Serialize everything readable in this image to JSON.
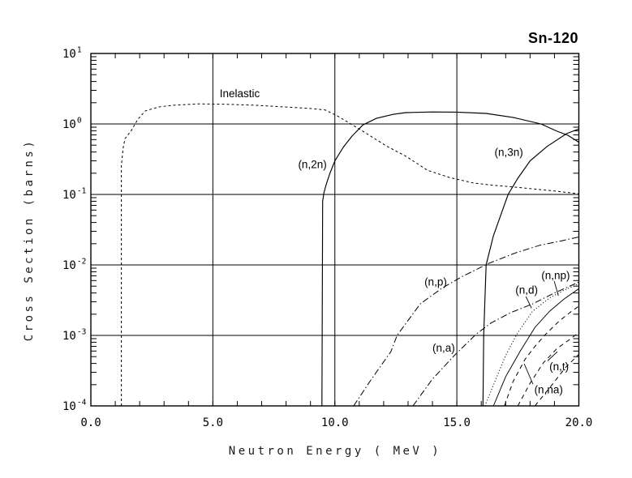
{
  "title": "Sn-120",
  "colors": {
    "stroke": "#000000",
    "background": "#ffffff"
  },
  "chart_data": {
    "type": "line",
    "title": "Sn-120",
    "xlabel": "Neutron Energy ( MeV )",
    "ylabel": "Cross Section (barns)",
    "x_axis": {
      "min": 0,
      "max": 20,
      "major_ticks": [
        0,
        5,
        10,
        15,
        20
      ],
      "tick_labels": [
        "0.0",
        "5.0",
        "10.0",
        "15.0",
        "20.0"
      ],
      "minor_tick_step": 1,
      "gridlines": [
        5,
        10,
        15
      ]
    },
    "y_axis": {
      "scale": "log",
      "min": 0.0001,
      "max": 10,
      "decade_exponents": [
        1,
        0,
        -1,
        -2,
        -3,
        -4
      ],
      "gridline_exponents": [
        0,
        -1,
        -2,
        -3
      ]
    },
    "series": [
      {
        "name": "Inelastic",
        "style": "dashed",
        "points": [
          [
            1.25,
            0.0001
          ],
          [
            1.25,
            0.26
          ],
          [
            1.33,
            0.47
          ],
          [
            1.4,
            0.62
          ],
          [
            1.66,
            0.81
          ],
          [
            1.93,
            1.17
          ],
          [
            2.23,
            1.53
          ],
          [
            2.77,
            1.74
          ],
          [
            3.33,
            1.84
          ],
          [
            4.4,
            1.93
          ],
          [
            5.55,
            1.9
          ],
          [
            6.65,
            1.85
          ],
          [
            8.0,
            1.74
          ],
          [
            9.0,
            1.66
          ],
          [
            9.6,
            1.58
          ],
          [
            10.1,
            1.3
          ],
          [
            10.6,
            1.03
          ],
          [
            11.2,
            0.77
          ],
          [
            12.1,
            0.49
          ],
          [
            12.9,
            0.35
          ],
          [
            13.8,
            0.22
          ],
          [
            14.7,
            0.174
          ],
          [
            15.7,
            0.145
          ],
          [
            16.5,
            0.135
          ],
          [
            17.3,
            0.128
          ],
          [
            18.2,
            0.119
          ],
          [
            19.0,
            0.112
          ],
          [
            20,
            0.102
          ]
        ]
      },
      {
        "name": "(n,2n)",
        "style": "solid",
        "points": [
          [
            9.47,
            0.0001
          ],
          [
            9.5,
            0.08
          ],
          [
            9.55,
            0.105
          ],
          [
            9.65,
            0.14
          ],
          [
            9.8,
            0.2
          ],
          [
            10.0,
            0.3
          ],
          [
            10.35,
            0.47
          ],
          [
            10.7,
            0.67
          ],
          [
            11.15,
            0.97
          ],
          [
            11.7,
            1.2
          ],
          [
            12.4,
            1.37
          ],
          [
            12.9,
            1.45
          ],
          [
            14.0,
            1.48
          ],
          [
            15.0,
            1.47
          ],
          [
            16.2,
            1.41
          ],
          [
            17.3,
            1.24
          ],
          [
            18.45,
            1.0
          ],
          [
            19.1,
            0.79
          ],
          [
            19.55,
            0.69
          ],
          [
            20,
            0.55
          ]
        ]
      },
      {
        "name": "(n,3n)",
        "style": "solid",
        "points": [
          [
            16.07,
            0.0001
          ],
          [
            16.1,
            0.001
          ],
          [
            16.2,
            0.01
          ],
          [
            16.5,
            0.026
          ],
          [
            17.1,
            0.1
          ],
          [
            17.5,
            0.17
          ],
          [
            18.0,
            0.3
          ],
          [
            18.7,
            0.48
          ],
          [
            19.5,
            0.73
          ],
          [
            20,
            0.85
          ]
        ]
      },
      {
        "name": "(n,p)",
        "style": "dashdot",
        "points": [
          [
            10.77,
            0.0001
          ],
          [
            11.5,
            0.00024
          ],
          [
            12.3,
            0.00059
          ],
          [
            12.55,
            0.001
          ],
          [
            13.5,
            0.0028
          ],
          [
            14.4,
            0.0047
          ],
          [
            15.2,
            0.0068
          ],
          [
            16.3,
            0.0105
          ],
          [
            17.4,
            0.0148
          ],
          [
            18.4,
            0.019
          ],
          [
            19.3,
            0.022
          ],
          [
            20,
            0.025
          ]
        ]
      },
      {
        "name": "(n,a)",
        "style": "dashdot",
        "points": [
          [
            13.2,
            0.0001
          ],
          [
            14.0,
            0.00024
          ],
          [
            14.9,
            0.00052
          ],
          [
            15.8,
            0.00105
          ],
          [
            16.4,
            0.0015
          ],
          [
            17.2,
            0.0021
          ],
          [
            18.1,
            0.0028
          ],
          [
            19.0,
            0.004
          ],
          [
            20,
            0.0057
          ]
        ]
      },
      {
        "name": "(n,np)",
        "style": "dotted",
        "points": [
          [
            16.15,
            0.0001
          ],
          [
            16.6,
            0.00024
          ],
          [
            17.0,
            0.00052
          ],
          [
            17.45,
            0.00103
          ],
          [
            18.1,
            0.0022
          ],
          [
            18.8,
            0.0034
          ],
          [
            19.4,
            0.0044
          ],
          [
            20,
            0.0054
          ]
        ]
      },
      {
        "name": "(n,d)",
        "style": "solid-thin",
        "points": [
          [
            16.5,
            0.0001
          ],
          [
            17.0,
            0.00026
          ],
          [
            17.6,
            0.0006
          ],
          [
            18.2,
            0.0013
          ],
          [
            18.8,
            0.0022
          ],
          [
            19.4,
            0.0033
          ],
          [
            20,
            0.0046
          ]
        ]
      },
      {
        "name": "(n,na)",
        "style": "dashed-med",
        "points": [
          [
            16.95,
            0.0001
          ],
          [
            17.3,
            0.00022
          ],
          [
            17.8,
            0.00046
          ],
          [
            18.2,
            0.0007
          ],
          [
            18.65,
            0.00105
          ],
          [
            19.2,
            0.0016
          ],
          [
            19.7,
            0.0022
          ],
          [
            20,
            0.0026
          ]
        ]
      },
      {
        "name": "(n,t)",
        "style": "dashed-med",
        "points": [
          [
            17.5,
            0.0001
          ],
          [
            18.0,
            0.00021
          ],
          [
            18.55,
            0.00041
          ],
          [
            19.1,
            0.00065
          ],
          [
            19.65,
            0.00089
          ],
          [
            20,
            0.0011
          ]
        ]
      },
      {
        "name": "",
        "style": "dashed-med",
        "points": [
          [
            18.2,
            0.0001
          ],
          [
            18.8,
            0.00018
          ],
          [
            19.45,
            0.00035
          ],
          [
            20,
            0.00054
          ]
        ]
      }
    ],
    "annotations": [
      {
        "text": "Inelastic",
        "x": 6.1,
        "y": 2.7
      },
      {
        "text": "(n,2n)",
        "x": 9.08,
        "y": 0.266
      },
      {
        "text": "(n,3n)",
        "x": 17.13,
        "y": 0.396
      },
      {
        "text": "(n,p)",
        "x": 14.13,
        "y": 0.00575
      },
      {
        "text": "(n,np)",
        "x": 19.05,
        "y": 0.0071,
        "leader": [
          18.99,
          0.0059,
          19.16,
          0.00365
        ]
      },
      {
        "text": "(n,d)",
        "x": 17.86,
        "y": 0.0044,
        "leader": [
          17.83,
          0.00355,
          18.06,
          0.00244
        ]
      },
      {
        "text": "(n,a)",
        "x": 14.46,
        "y": 0.00066
      },
      {
        "text": "(n,t)",
        "x": 19.19,
        "y": 0.00036,
        "leader": [
          18.72,
          0.000436,
          19.12,
          0.000588
        ]
      },
      {
        "text": "(n,na)",
        "x": 18.76,
        "y": 0.00017,
        "leader": [
          18.12,
          0.000203,
          17.76,
          0.000396
        ]
      }
    ],
    "layout": {
      "grid": true,
      "legend": "none"
    }
  }
}
